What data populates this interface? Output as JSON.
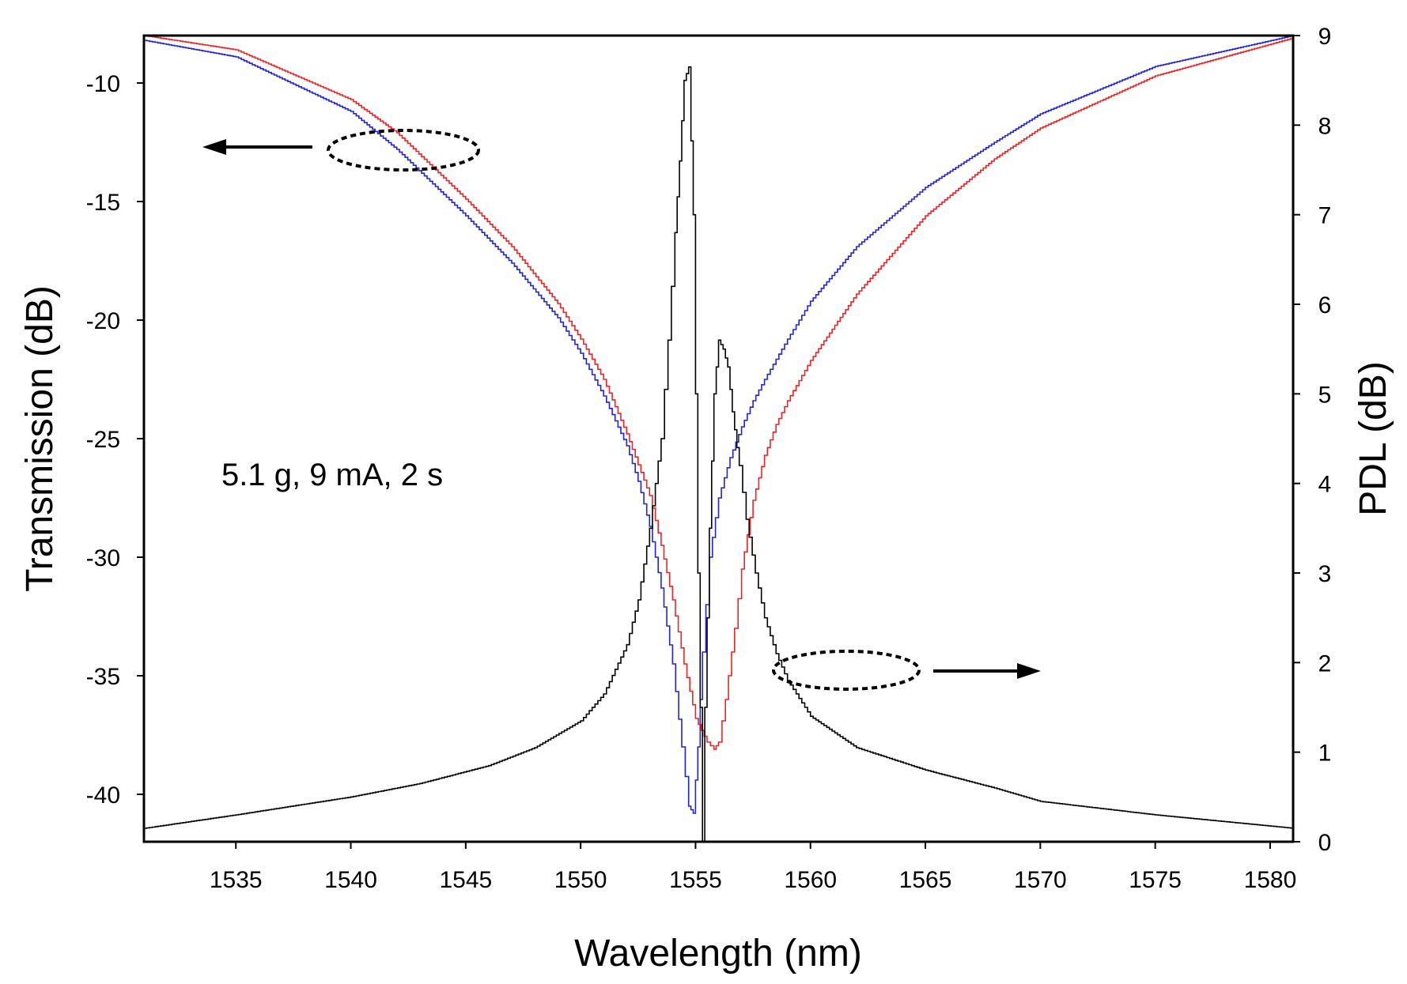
{
  "chart_data": {
    "type": "line",
    "xlabel": "Wavelength (nm)",
    "ylabel_left": "Transmission (dB)",
    "ylabel_right": "PDL (dB)",
    "xlim": [
      1531,
      1581
    ],
    "ylim_left": [
      -42,
      -8
    ],
    "ylim_right": [
      0,
      9
    ],
    "xticks": [
      1535,
      1540,
      1545,
      1550,
      1555,
      1560,
      1565,
      1570,
      1575,
      1580
    ],
    "yticks_left": [
      -10,
      -15,
      -20,
      -25,
      -30,
      -35,
      -40
    ],
    "yticks_right": [
      0,
      1,
      2,
      3,
      4,
      5,
      6,
      7,
      8,
      9
    ],
    "annotation": "5.1 g, 9 mA, 2 s",
    "colors": {
      "blue": "#2222dd",
      "red": "#ee2222",
      "black": "#000000"
    },
    "series": [
      {
        "name": "Transmission (blue)",
        "axis": "left",
        "color": "#2222dd",
        "x": [
          1531,
          1535,
          1540,
          1542,
          1545,
          1547,
          1549,
          1550,
          1551,
          1552,
          1552.5,
          1553,
          1553.5,
          1554,
          1554.4,
          1554.7,
          1554.9,
          1555.1,
          1555.3,
          1555.6,
          1556,
          1556.5,
          1557,
          1557.5,
          1558,
          1559,
          1560,
          1562,
          1565,
          1568,
          1570,
          1575,
          1581
        ],
        "y": [
          -8.2,
          -8.9,
          -11.2,
          -12.8,
          -15.6,
          -17.6,
          -19.9,
          -21.4,
          -23.2,
          -25.3,
          -26.8,
          -28.7,
          -31.3,
          -34.5,
          -38.0,
          -40.5,
          -40.8,
          -38.0,
          -34.0,
          -30.0,
          -27.5,
          -25.8,
          -24.5,
          -23.4,
          -22.5,
          -20.8,
          -19.2,
          -16.9,
          -14.4,
          -12.5,
          -11.3,
          -9.3,
          -8.0
        ]
      },
      {
        "name": "Transmission (red)",
        "axis": "left",
        "color": "#ee2222",
        "x": [
          1531,
          1535,
          1540,
          1542,
          1545,
          1547,
          1549,
          1550,
          1551,
          1552,
          1553,
          1553.5,
          1554,
          1554.5,
          1555,
          1555.5,
          1555.8,
          1556,
          1556.3,
          1556.7,
          1557,
          1557.5,
          1558,
          1558.5,
          1559,
          1560,
          1562,
          1565,
          1568,
          1570,
          1575,
          1581
        ],
        "y": [
          -8.0,
          -8.6,
          -10.7,
          -12.1,
          -14.9,
          -16.9,
          -19.3,
          -20.8,
          -22.5,
          -24.8,
          -27.4,
          -29.5,
          -31.8,
          -34.5,
          -36.8,
          -37.8,
          -38.1,
          -37.8,
          -36.0,
          -33.0,
          -30.5,
          -27.6,
          -25.7,
          -24.4,
          -23.4,
          -21.7,
          -18.9,
          -15.6,
          -13.2,
          -11.9,
          -9.7,
          -8.1
        ]
      },
      {
        "name": "PDL",
        "axis": "right",
        "color": "#000000",
        "x": [
          1531,
          1535,
          1540,
          1543,
          1546,
          1548,
          1550,
          1551,
          1552,
          1552.5,
          1553,
          1553.5,
          1553.8,
          1554.1,
          1554.3,
          1554.5,
          1554.7,
          1554.9,
          1555.1,
          1555.3,
          1555.4,
          1555.6,
          1555.8,
          1556.0,
          1556.2,
          1556.4,
          1556.6,
          1556.9,
          1557.2,
          1557.6,
          1558,
          1558.5,
          1559,
          1560,
          1562,
          1565,
          1568,
          1570,
          1575,
          1581
        ],
        "y": [
          0.15,
          0.3,
          0.5,
          0.65,
          0.85,
          1.05,
          1.35,
          1.65,
          2.2,
          2.7,
          3.5,
          4.5,
          5.6,
          6.8,
          7.6,
          8.5,
          8.65,
          7.0,
          3.0,
          0.0,
          1.5,
          3.5,
          5.0,
          5.6,
          5.5,
          5.3,
          4.8,
          4.2,
          3.6,
          3.0,
          2.5,
          2.1,
          1.8,
          1.4,
          1.05,
          0.8,
          0.6,
          0.45,
          0.3,
          0.15
        ]
      }
    ]
  }
}
